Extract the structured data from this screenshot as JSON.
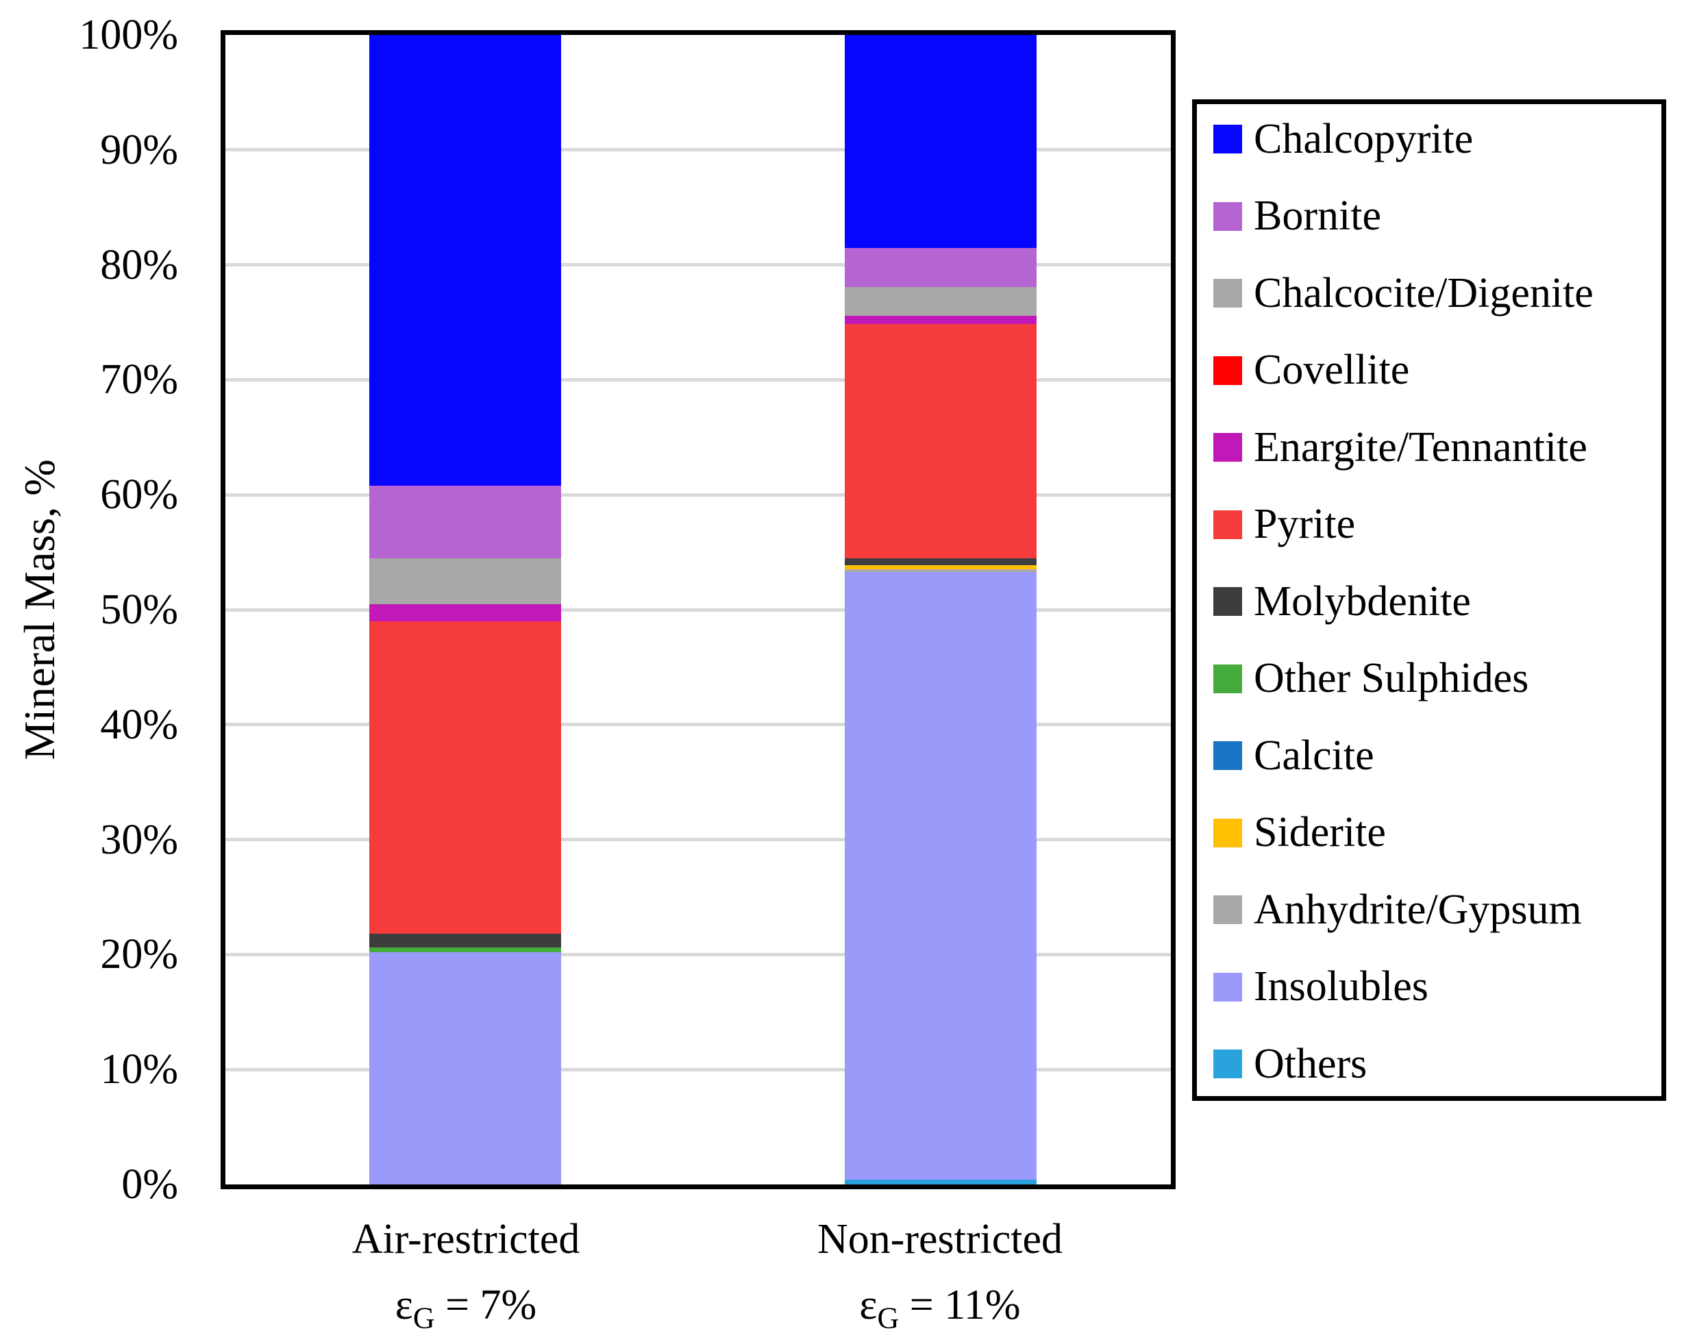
{
  "chart_data": {
    "type": "bar",
    "stacked": true,
    "ylabel": "Mineral Mass, %",
    "ylim": [
      0,
      100
    ],
    "yticks": [
      0,
      10,
      20,
      30,
      40,
      50,
      60,
      70,
      80,
      90,
      100
    ],
    "ytick_suffix": "%",
    "grid": "horizontal",
    "legend_position": "right",
    "categories": [
      {
        "id": "air-restricted",
        "name": "Air-restricted",
        "condition": {
          "symbol": "ε",
          "sub": "G",
          "value": "= 7%"
        }
      },
      {
        "id": "non-restricted",
        "name": "Non-restricted",
        "condition": {
          "symbol": "ε",
          "sub": "G",
          "value": "= 11%"
        }
      }
    ],
    "stacking_order_bottom_to_top": [
      "Others",
      "Insolubles",
      "Anhydrite/Gypsum",
      "Siderite",
      "Calcite",
      "Other Sulphides",
      "Molybdenite",
      "Pyrite",
      "Enargite/Tennantite",
      "Covellite",
      "Chalcocite/Digenite",
      "Bornite",
      "Chalcopyrite"
    ],
    "series": [
      {
        "key": "chalcopyrite",
        "name": "Chalcopyrite",
        "color": "#0606FF",
        "values": [
          39.2,
          18.55
        ]
      },
      {
        "key": "bornite",
        "name": "Bornite",
        "color": "#B565D2",
        "values": [
          6.3,
          3.4
        ]
      },
      {
        "key": "chalcocite-digenite",
        "name": "Chalcocite/Digenite",
        "color": "#A8A8A8",
        "values": [
          4.0,
          2.5
        ]
      },
      {
        "key": "covellite",
        "name": "Covellite",
        "color": "#FF0000",
        "values": [
          0,
          0
        ]
      },
      {
        "key": "enargite-tennantite",
        "name": "Enargite/Tennantite",
        "color": "#C119B7",
        "values": [
          1.5,
          0.7
        ]
      },
      {
        "key": "pyrite",
        "name": "Pyrite",
        "color": "#F53B3B",
        "values": [
          27.2,
          20.4
        ]
      },
      {
        "key": "molybdenite",
        "name": "Molybdenite",
        "color": "#3D3D3D",
        "values": [
          1.2,
          0.6
        ]
      },
      {
        "key": "other-sulphides",
        "name": "Other Sulphides",
        "color": "#45AB3B",
        "values": [
          0.4,
          0
        ]
      },
      {
        "key": "calcite",
        "name": "Calcite",
        "color": "#1A73C4",
        "values": [
          0,
          0
        ]
      },
      {
        "key": "siderite",
        "name": "Siderite",
        "color": "#FFC003",
        "values": [
          0,
          0.35
        ]
      },
      {
        "key": "anhydrite-gypsum",
        "name": "Anhydrite/Gypsum",
        "color": "#A9A9A9",
        "values": [
          0,
          0.2
        ]
      },
      {
        "key": "insolubles",
        "name": "Insolubles",
        "color": "#9B99FA",
        "values": [
          20.2,
          52.9
        ]
      },
      {
        "key": "others",
        "name": "Others",
        "color": "#29A3DC",
        "values": [
          0,
          0.4
        ]
      }
    ]
  }
}
